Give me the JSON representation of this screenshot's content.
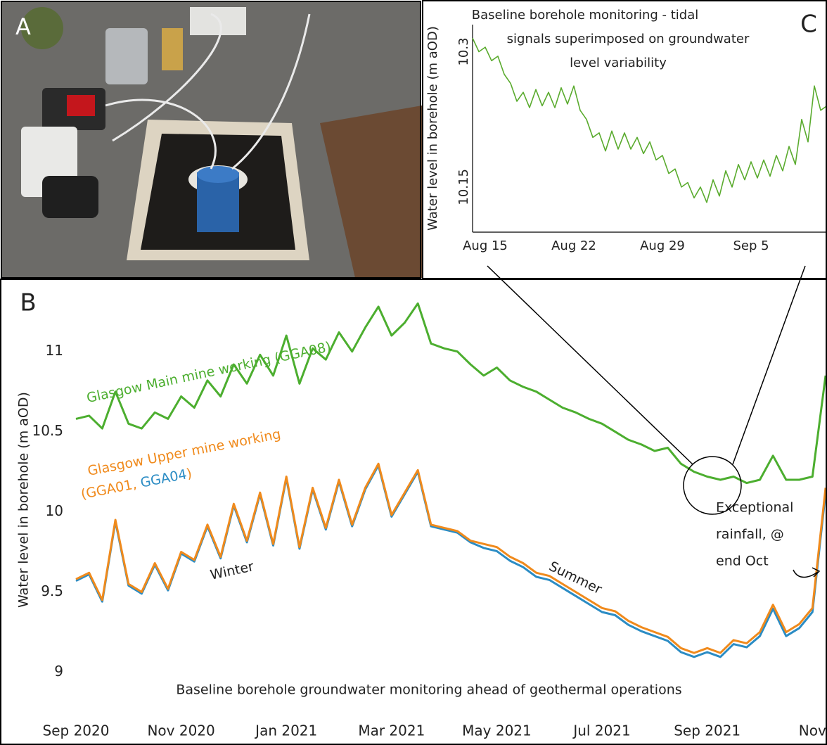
{
  "panel_a": {
    "label": "A"
  },
  "chart_data": [
    {
      "type": "line",
      "panel_label": "C",
      "title_lines": [
        "Baseline borehole monitoring - tidal",
        "signals superimposed on groundwater",
        "level variability"
      ],
      "y_label": "Water level in borehole (m aOD)",
      "categories": [
        null,
        null,
        "Aug 15",
        null,
        null,
        null,
        null,
        null,
        null,
        null,
        null,
        null,
        null,
        null,
        null,
        null,
        "Aug 22",
        null,
        null,
        null,
        null,
        null,
        null,
        null,
        null,
        null,
        null,
        null,
        null,
        null,
        "Aug 29",
        null,
        null,
        null,
        null,
        null,
        null,
        null,
        null,
        null,
        null,
        null,
        null,
        null,
        "Sep 5",
        null,
        null,
        null,
        null,
        null,
        null,
        null,
        null,
        null,
        null,
        null,
        null
      ],
      "values": [
        10.315,
        10.3,
        10.305,
        10.29,
        10.295,
        10.275,
        10.265,
        10.245,
        10.255,
        10.238,
        10.258,
        10.24,
        10.255,
        10.238,
        10.26,
        10.242,
        10.262,
        10.235,
        10.225,
        10.205,
        10.21,
        10.19,
        10.212,
        10.192,
        10.21,
        10.192,
        10.205,
        10.187,
        10.2,
        10.18,
        10.185,
        10.165,
        10.17,
        10.15,
        10.155,
        10.138,
        10.15,
        10.133,
        10.158,
        10.14,
        10.168,
        10.15,
        10.175,
        10.158,
        10.178,
        10.16,
        10.18,
        10.162,
        10.185,
        10.168,
        10.195,
        10.175,
        10.225,
        10.2,
        10.262,
        10.235,
        10.24
      ],
      "color": "#5aab2e",
      "ylim": [
        10.1,
        10.33
      ],
      "yticks": [
        10.15,
        10.3
      ],
      "grid": false
    },
    {
      "type": "line",
      "panel_label": "B",
      "y_label": "Water level in borehole (m aOD)",
      "subtitle": "Baseline borehole groundwater monitoring ahead of geothermal operations",
      "categories": [
        "Sep 2020",
        null,
        null,
        null,
        null,
        null,
        null,
        null,
        "Nov 2020",
        null,
        null,
        null,
        null,
        null,
        null,
        null,
        "Jan 2021",
        null,
        null,
        null,
        null,
        null,
        null,
        null,
        "Mar 2021",
        null,
        null,
        null,
        null,
        null,
        null,
        null,
        "May 2021",
        null,
        null,
        null,
        null,
        null,
        null,
        null,
        "Jul 2021",
        null,
        null,
        null,
        null,
        null,
        null,
        null,
        "Sep 2021",
        null,
        null,
        null,
        null,
        null,
        null,
        null,
        "Nov",
        null
      ],
      "series": [
        {
          "name": "Glasgow Main mine working (GGA08)",
          "color": "#4cae2f",
          "values": [
            10.58,
            10.6,
            10.52,
            10.75,
            10.55,
            10.52,
            10.62,
            10.58,
            10.72,
            10.65,
            10.82,
            10.72,
            10.92,
            10.8,
            10.98,
            10.85,
            11.1,
            10.8,
            11.02,
            10.95,
            11.12,
            11.0,
            11.15,
            11.28,
            11.1,
            11.18,
            11.3,
            11.05,
            11.02,
            11.0,
            10.92,
            10.85,
            10.9,
            10.82,
            10.78,
            10.75,
            10.7,
            10.65,
            10.62,
            10.58,
            10.55,
            10.5,
            10.45,
            10.42,
            10.38,
            10.4,
            10.3,
            10.25,
            10.22,
            10.2,
            10.22,
            10.18,
            10.2,
            10.35,
            10.2,
            10.2,
            10.22,
            10.85
          ]
        },
        {
          "name": "GGA04",
          "color": "#2b8cc4",
          "values": [
            9.57,
            9.61,
            9.44,
            9.94,
            9.54,
            9.49,
            9.67,
            9.51,
            9.74,
            9.69,
            9.91,
            9.71,
            10.04,
            9.81,
            10.11,
            9.79,
            10.21,
            9.77,
            10.14,
            9.89,
            10.19,
            9.91,
            10.14,
            10.29,
            9.97,
            10.11,
            10.25,
            9.91,
            9.89,
            9.87,
            9.81,
            9.775,
            9.755,
            9.695,
            9.655,
            9.595,
            9.575,
            9.525,
            9.475,
            9.425,
            9.375,
            9.355,
            9.295,
            9.255,
            9.225,
            9.195,
            9.125,
            9.095,
            9.125,
            9.095,
            9.175,
            9.155,
            9.225,
            9.395,
            9.225,
            9.275,
            9.375,
            10.12
          ]
        },
        {
          "name": "GGA01",
          "color": "#f08a1c",
          "values": [
            9.58,
            9.62,
            9.45,
            9.95,
            9.55,
            9.5,
            9.68,
            9.52,
            9.75,
            9.7,
            9.92,
            9.72,
            10.05,
            9.82,
            10.12,
            9.8,
            10.22,
            9.78,
            10.15,
            9.9,
            10.2,
            9.92,
            10.15,
            10.3,
            9.98,
            10.12,
            10.26,
            9.92,
            9.9,
            9.88,
            9.82,
            9.8,
            9.78,
            9.72,
            9.68,
            9.62,
            9.6,
            9.55,
            9.5,
            9.45,
            9.4,
            9.38,
            9.32,
            9.28,
            9.25,
            9.22,
            9.15,
            9.12,
            9.15,
            9.12,
            9.2,
            9.18,
            9.25,
            9.42,
            9.25,
            9.3,
            9.4,
            10.15
          ]
        }
      ],
      "upper_label": {
        "line1": "Glasgow Upper mine working",
        "open": "(",
        "sep": ", ",
        "close": ")"
      },
      "annotations": {
        "winter": "Winter",
        "summer": "Summer",
        "rainfall": [
          "Exceptional",
          "rainfall, @",
          "end Oct"
        ]
      },
      "ylim": [
        8.8,
        11.35
      ],
      "yticks": [
        9,
        9.5,
        10,
        10.5,
        11
      ],
      "grid": false
    }
  ]
}
